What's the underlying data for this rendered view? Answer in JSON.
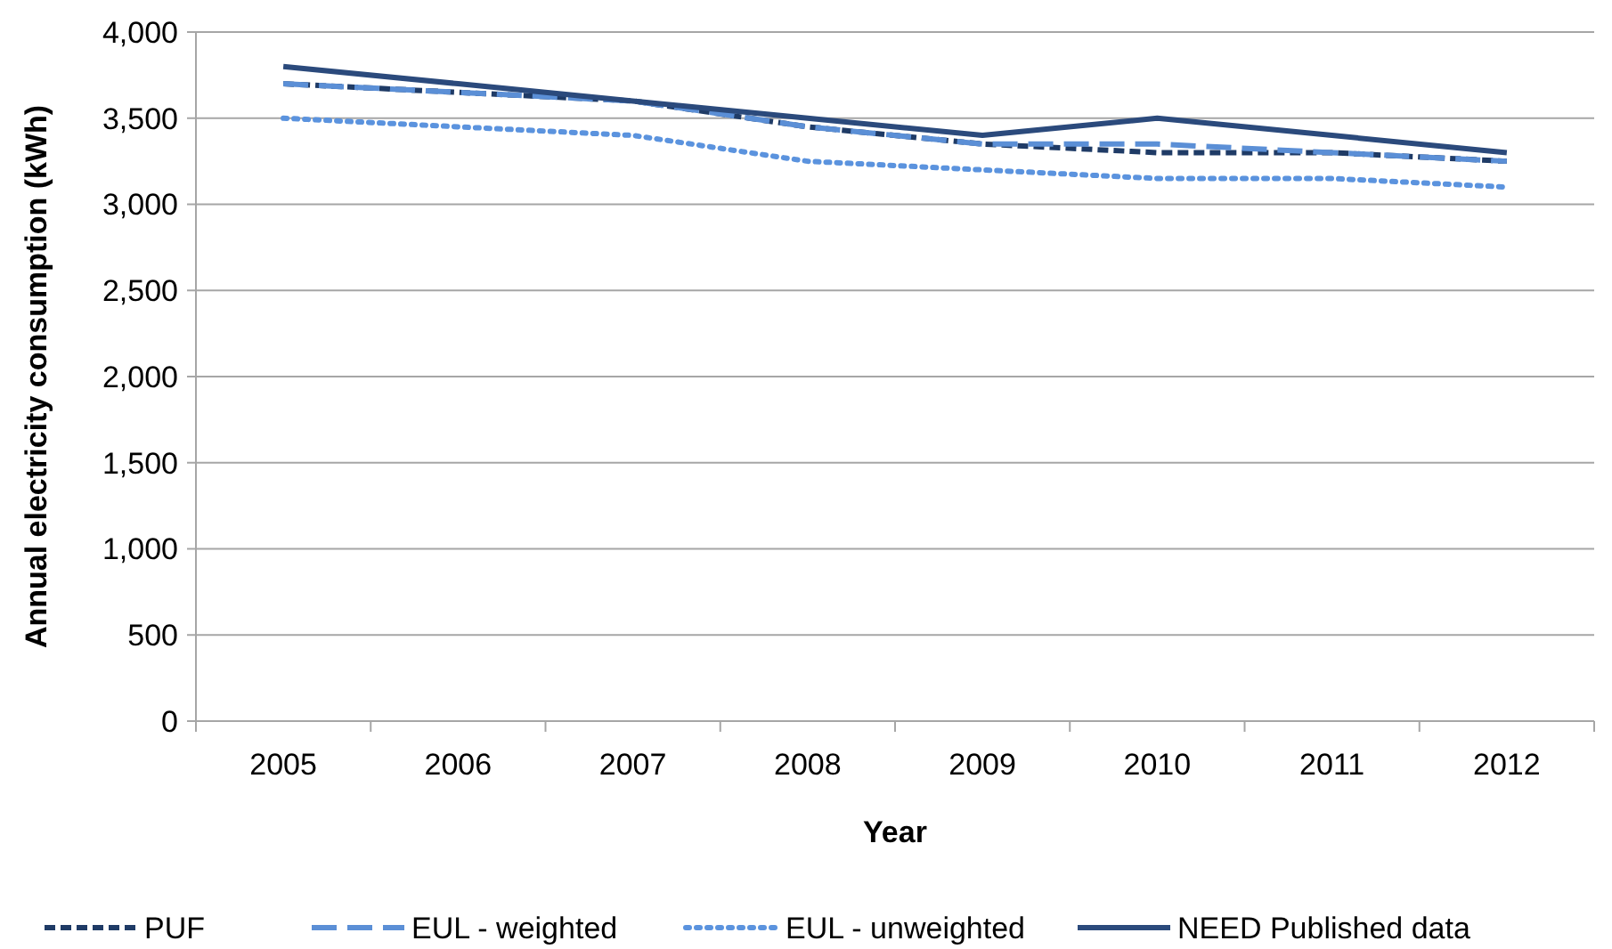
{
  "chart_data": {
    "type": "line",
    "xlabel": "Year",
    "ylabel": "Annual electricity consumption (kWh)",
    "categories": [
      "2005",
      "2006",
      "2007",
      "2008",
      "2009",
      "2010",
      "2011",
      "2012"
    ],
    "series": [
      {
        "name": "PUF",
        "color": "#1f3b66",
        "line_style": "dashed",
        "values": [
          3700,
          3650,
          3600,
          3450,
          3350,
          3300,
          3300,
          3250
        ]
      },
      {
        "name": "EUL - weighted",
        "color": "#5b8fd6",
        "line_style": "longdash",
        "values": [
          3700,
          3650,
          3600,
          3450,
          3350,
          3350,
          3300,
          3250
        ]
      },
      {
        "name": "EUL - unweighted",
        "color": "#5b93de",
        "line_style": "dotted",
        "values": [
          3500,
          3450,
          3400,
          3250,
          3200,
          3150,
          3150,
          3100
        ]
      },
      {
        "name": "NEED Published data",
        "color": "#2b4a7c",
        "line_style": "solid",
        "values": [
          3800,
          3700,
          3600,
          3500,
          3400,
          3500,
          3400,
          3300
        ]
      }
    ],
    "ylim": [
      0,
      4000
    ],
    "yticks": [
      {
        "value": 0,
        "label": "0"
      },
      {
        "value": 500,
        "label": "500"
      },
      {
        "value": 1000,
        "label": "1,000"
      },
      {
        "value": 1500,
        "label": "1,500"
      },
      {
        "value": 2000,
        "label": "2,000"
      },
      {
        "value": 2500,
        "label": "2,500"
      },
      {
        "value": 3000,
        "label": "3,000"
      },
      {
        "value": 3500,
        "label": "3,500"
      },
      {
        "value": 4000,
        "label": "4,000"
      }
    ],
    "grid": "y",
    "legend": "bottom",
    "marker": "none"
  }
}
